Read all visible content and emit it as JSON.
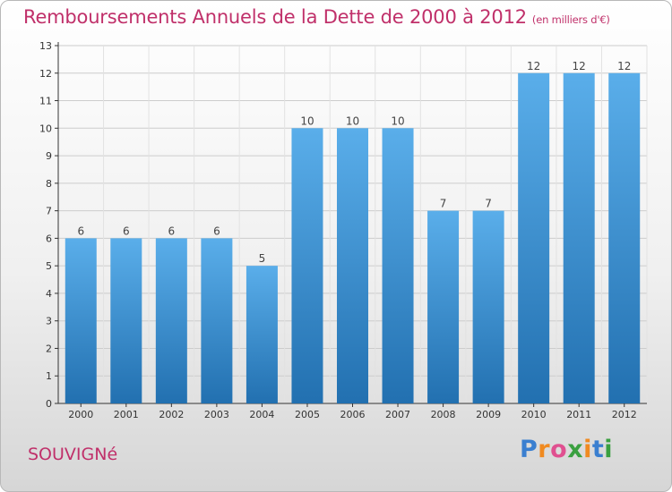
{
  "title": "Remboursements Annuels de la Dette de 2000 à 2012",
  "unit": "(en milliers d'€)",
  "commune": "SOUVIGNé",
  "logo": {
    "letters": [
      "P",
      "r",
      "o",
      "x",
      "i",
      "t",
      "i"
    ],
    "colors": [
      "#3a7fd0",
      "#f08a20",
      "#e05090",
      "#3aa040",
      "#f08a20",
      "#3a7fd0",
      "#3aa040"
    ]
  },
  "colors": {
    "title": "#c0306a",
    "bar_light": "#5aaeea",
    "bar_dark": "#2270b0",
    "axis": "#333333",
    "grid": "#cccccc"
  },
  "chart_data": {
    "type": "bar",
    "categories": [
      "2000",
      "2001",
      "2002",
      "2003",
      "2004",
      "2005",
      "2006",
      "2007",
      "2008",
      "2009",
      "2010",
      "2011",
      "2012"
    ],
    "values": [
      6,
      6,
      6,
      6,
      5,
      10,
      10,
      10,
      7,
      7,
      12,
      12,
      12
    ],
    "data_labels": [
      "6",
      "6",
      "6",
      "6",
      "5",
      "10",
      "10",
      "10",
      "7",
      "7",
      "12",
      "12",
      "12"
    ],
    "y_ticks": [
      0,
      1,
      2,
      3,
      4,
      5,
      6,
      7,
      8,
      9,
      10,
      11,
      12,
      13
    ],
    "ylim": [
      0,
      13
    ],
    "grid": true,
    "title": "Remboursements Annuels de la Dette de 2000 à 2012",
    "xlabel": "",
    "ylabel": ""
  }
}
